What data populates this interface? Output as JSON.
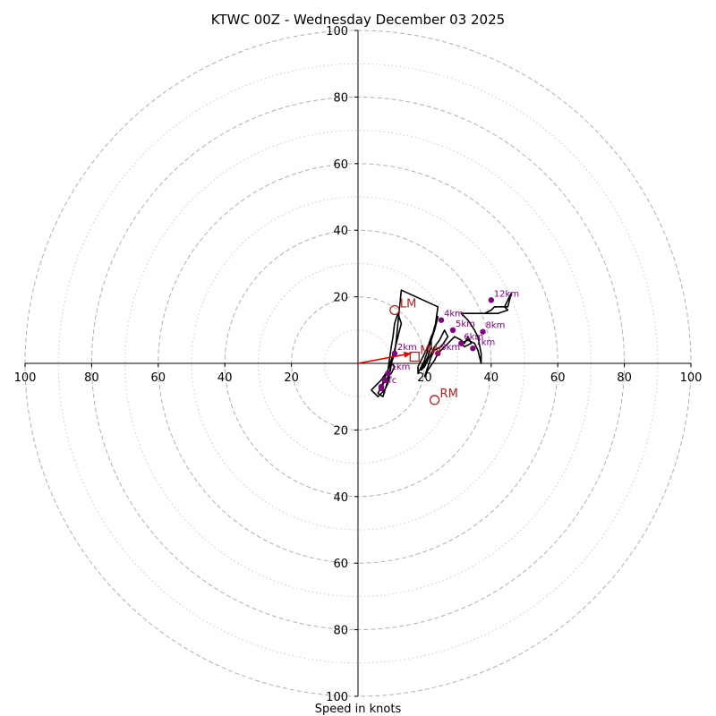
{
  "chart_data": {
    "type": "hodograph",
    "title": "KTWC 00Z - Wednesday December 03 2025",
    "xlabel": "Speed in knots",
    "units": "knots",
    "range": [
      -100,
      100
    ],
    "rings_major": [
      20,
      40,
      60,
      80,
      100
    ],
    "rings_minor": [
      10,
      30,
      50,
      70,
      90
    ],
    "tick_labels_horizontal": [
      "100",
      "80",
      "60",
      "40",
      "20",
      "20",
      "40",
      "60",
      "80",
      "100"
    ],
    "tick_labels_vertical": [
      "100",
      "80",
      "60",
      "40",
      "20",
      "20",
      "40",
      "60",
      "80",
      "100"
    ],
    "grid": true,
    "colors": {
      "trace": "#000000",
      "height_points": "#800080",
      "storm_motion": "#b22222",
      "mean_wind_arrow": "#dd0000",
      "major_rings": "#b0b0b0",
      "minor_rings": "#cccccc"
    },
    "trace": [
      [
        8,
        -9
      ],
      [
        7,
        -7
      ],
      [
        9,
        -4
      ],
      [
        10,
        -3
      ],
      [
        11,
        -1
      ],
      [
        10,
        0
      ],
      [
        10,
        1
      ],
      [
        10.5,
        2.5
      ],
      [
        9,
        -6
      ],
      [
        8,
        -8
      ],
      [
        6,
        -10
      ],
      [
        4,
        -8
      ],
      [
        7,
        -5
      ],
      [
        9,
        -2
      ],
      [
        10,
        1
      ],
      [
        11,
        4
      ],
      [
        12,
        8
      ],
      [
        13,
        12
      ],
      [
        12,
        15
      ],
      [
        11,
        12
      ],
      [
        10.5,
        8
      ],
      [
        10,
        5
      ],
      [
        9,
        -2
      ],
      [
        7,
        -7
      ],
      [
        6,
        -9
      ],
      [
        7.5,
        -10
      ],
      [
        9,
        -5
      ],
      [
        10,
        0
      ],
      [
        11,
        3
      ],
      [
        11.5,
        7
      ],
      [
        12,
        12
      ],
      [
        12.5,
        17
      ],
      [
        13,
        22
      ],
      [
        24,
        17
      ],
      [
        23,
        10
      ],
      [
        21,
        4
      ],
      [
        20,
        1
      ],
      [
        19,
        -1
      ],
      [
        18,
        -3
      ],
      [
        18,
        -1
      ],
      [
        19,
        1
      ],
      [
        20,
        3
      ],
      [
        21,
        5
      ],
      [
        22,
        8
      ],
      [
        23,
        10
      ],
      [
        24,
        14
      ],
      [
        23,
        11
      ],
      [
        22,
        7
      ],
      [
        22,
        5
      ],
      [
        21,
        2
      ],
      [
        20,
        0
      ],
      [
        19,
        -2
      ],
      [
        20,
        -1
      ],
      [
        21,
        1
      ],
      [
        22,
        3
      ],
      [
        23,
        5
      ],
      [
        24.5,
        7
      ],
      [
        26,
        10
      ],
      [
        27,
        8
      ],
      [
        25,
        5
      ],
      [
        23,
        4
      ],
      [
        22,
        2
      ],
      [
        21,
        -1
      ],
      [
        20,
        -4
      ],
      [
        21,
        -2
      ],
      [
        23,
        1
      ],
      [
        24,
        3
      ],
      [
        25,
        4
      ],
      [
        27,
        6
      ],
      [
        29,
        8
      ],
      [
        31,
        7
      ],
      [
        32,
        6
      ],
      [
        33,
        8
      ],
      [
        34,
        6
      ],
      [
        32,
        5
      ],
      [
        31,
        6
      ],
      [
        33,
        7
      ],
      [
        35,
        6
      ],
      [
        36,
        4
      ],
      [
        37,
        0
      ],
      [
        37,
        3
      ],
      [
        36,
        8
      ],
      [
        35,
        10
      ],
      [
        33,
        13
      ],
      [
        31,
        15
      ],
      [
        42,
        15
      ],
      [
        45,
        16
      ],
      [
        44,
        17
      ],
      [
        46,
        21
      ],
      [
        45,
        17
      ],
      [
        41,
        17
      ],
      [
        40,
        16
      ],
      [
        38,
        15
      ]
    ],
    "height_points": [
      {
        "label": "sfc",
        "u": 7,
        "v": -7
      },
      {
        "label": "",
        "u": 7,
        "v": -7.5
      },
      {
        "label": "",
        "u": 8,
        "v": -5
      },
      {
        "label": "1km",
        "u": 9,
        "v": -3
      },
      {
        "label": "2km",
        "u": 11,
        "v": 3
      },
      {
        "label": "3km",
        "u": 24,
        "v": 3
      },
      {
        "label": "4km",
        "u": 25,
        "v": 13
      },
      {
        "label": "5km",
        "u": 28.5,
        "v": 10
      },
      {
        "label": "6km",
        "u": 31,
        "v": 6
      },
      {
        "label": "7km",
        "u": 34.5,
        "v": 4.5
      },
      {
        "label": "8km",
        "u": 37.5,
        "v": 9.5
      },
      {
        "label": "12km",
        "u": 40,
        "v": 19
      }
    ],
    "storm_motion": [
      {
        "label": "LM",
        "u": 11,
        "v": 16,
        "marker": "circle"
      },
      {
        "label": "RM",
        "u": 23,
        "v": -11,
        "marker": "circle"
      },
      {
        "label": "MW",
        "u": 17,
        "v": 2,
        "marker": "square"
      }
    ],
    "mean_wind_arrow": {
      "from": [
        0,
        0
      ],
      "to": [
        16,
        3
      ]
    }
  }
}
